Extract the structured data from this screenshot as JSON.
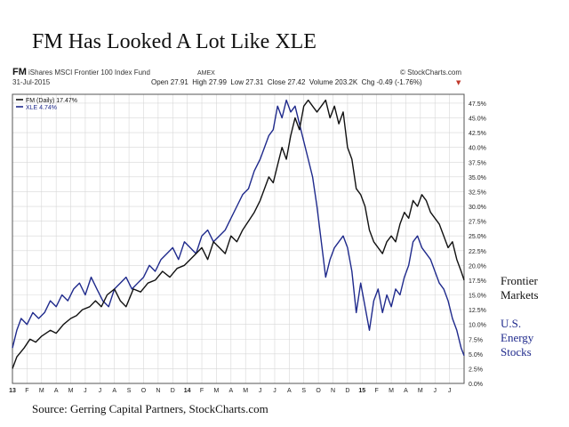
{
  "slide": {
    "title": "FM Has Looked A Lot Like XLE",
    "source": "Source: Gerring Capital Partners, StockCharts.com",
    "annotation_fm": [
      "Frontier",
      "Markets"
    ],
    "annotation_xle": [
      "U.S.",
      "Energy",
      "Stocks"
    ]
  },
  "chart_header": {
    "symbol": "FM",
    "name": "iShares MSCI Frontier 100 Index Fund",
    "exchange": "AMEX",
    "credit": "© StockCharts.com",
    "date": "31-Jul-2015",
    "quote": "Open 27.91  High 27.99  Low 27.31  Close 27.42  Volume 203.2K  Chg -0.49 (-1.76%)",
    "change_marker": "▼"
  },
  "colors": {
    "fm": "#111111",
    "xle": "#1f2a8c",
    "grid": "#d7d7d7",
    "down": "#c0392b"
  },
  "chart_data": {
    "type": "line",
    "title": "FM Has Looked A Lot Like XLE",
    "ylim": [
      0,
      49
    ],
    "grid": true,
    "legend_position": "top-left",
    "y_ticks": [
      "0.0%",
      "2.5%",
      "5.0%",
      "7.5%",
      "10.0%",
      "12.5%",
      "15.0%",
      "17.5%",
      "20.0%",
      "22.5%",
      "25.0%",
      "27.5%",
      "30.0%",
      "32.5%",
      "35.0%",
      "37.5%",
      "40.0%",
      "42.5%",
      "45.0%",
      "47.5%"
    ],
    "x_ticks": [
      "13",
      "F",
      "M",
      "A",
      "M",
      "J",
      "J",
      "A",
      "S",
      "O",
      "N",
      "D",
      "14",
      "F",
      "M",
      "A",
      "M",
      "J",
      "J",
      "A",
      "S",
      "O",
      "N",
      "D",
      "15",
      "F",
      "M",
      "A",
      "M",
      "J",
      "J"
    ],
    "series": [
      {
        "name": "FM (Daily) 17.47%",
        "x": [
          0,
          0.3,
          0.8,
          1.2,
          1.6,
          2.0,
          2.6,
          3.0,
          3.5,
          4.0,
          4.4,
          4.8,
          5.3,
          5.7,
          6.1,
          6.5,
          7.0,
          7.4,
          7.8,
          8.3,
          8.8,
          9.3,
          9.8,
          10.3,
          10.8,
          11.3,
          11.8,
          12.2,
          12.6,
          13.0,
          13.4,
          13.8,
          14.2,
          14.6,
          15.0,
          15.4,
          15.8,
          16.2,
          16.6,
          17.0,
          17.3,
          17.6,
          17.9,
          18.2,
          18.5,
          18.8,
          19.1,
          19.4,
          19.7,
          20.0,
          20.3,
          20.6,
          20.9,
          21.2,
          21.5,
          21.8,
          22.1,
          22.4,
          22.7,
          23.0,
          23.3,
          23.6,
          23.9,
          24.2,
          24.5,
          24.8,
          25.1,
          25.4,
          25.7,
          26.0,
          26.3,
          26.6,
          26.9,
          27.2,
          27.5,
          27.8,
          28.1,
          28.4,
          28.7,
          29.0,
          29.3,
          29.6,
          29.9,
          30.2,
          30.5,
          30.8,
          31.0
        ],
        "values": [
          2.5,
          4.5,
          6,
          7.5,
          7,
          8,
          9,
          8.5,
          10,
          11,
          11.5,
          12.5,
          13,
          14,
          13,
          15,
          16,
          14,
          13,
          16,
          15.5,
          17,
          17.5,
          19,
          18,
          19.5,
          20,
          21,
          22,
          23,
          21,
          24,
          23,
          22,
          25,
          24,
          26,
          27.5,
          29,
          31,
          33,
          35,
          34,
          37,
          40,
          38,
          42,
          45,
          43,
          47,
          48,
          47,
          46,
          47,
          48,
          45,
          47,
          44,
          46,
          40,
          38,
          33,
          32,
          30,
          26,
          24,
          23,
          22,
          24,
          25,
          24,
          27,
          29,
          28,
          31,
          30,
          32,
          31,
          29,
          28,
          27,
          25,
          23,
          24,
          21,
          19,
          17.5
        ]
      },
      {
        "name": "XLE 4.74%",
        "x": [
          0,
          0.3,
          0.6,
          1.0,
          1.4,
          1.8,
          2.2,
          2.6,
          3.0,
          3.4,
          3.8,
          4.2,
          4.6,
          5.0,
          5.4,
          5.8,
          6.2,
          6.6,
          7.0,
          7.4,
          7.8,
          8.2,
          8.6,
          9.0,
          9.4,
          9.8,
          10.2,
          10.6,
          11.0,
          11.4,
          11.8,
          12.2,
          12.6,
          13.0,
          13.4,
          13.8,
          14.2,
          14.6,
          15.0,
          15.4,
          15.8,
          16.2,
          16.6,
          17.0,
          17.3,
          17.6,
          17.9,
          18.2,
          18.5,
          18.8,
          19.1,
          19.4,
          19.7,
          20.0,
          20.3,
          20.6,
          20.9,
          21.2,
          21.5,
          21.8,
          22.1,
          22.4,
          22.7,
          23.0,
          23.3,
          23.6,
          23.9,
          24.2,
          24.5,
          24.8,
          25.1,
          25.4,
          25.7,
          26.0,
          26.3,
          26.6,
          26.9,
          27.2,
          27.5,
          27.8,
          28.1,
          28.4,
          28.7,
          29.0,
          29.3,
          29.6,
          29.9,
          30.2,
          30.5,
          30.8,
          31.0
        ],
        "values": [
          6,
          9,
          11,
          10,
          12,
          11,
          12,
          14,
          13,
          15,
          14,
          16,
          17,
          15,
          18,
          16,
          14,
          13,
          16,
          17,
          18,
          16,
          17,
          18,
          20,
          19,
          21,
          22,
          23,
          21,
          24,
          23,
          22,
          25,
          26,
          24,
          25,
          26,
          28,
          30,
          32,
          33,
          36,
          38,
          40,
          42,
          43,
          47,
          45,
          48,
          46,
          47,
          44,
          41,
          38,
          35,
          30,
          24,
          18,
          21,
          23,
          24,
          25,
          23,
          19,
          12,
          17,
          13,
          9,
          14,
          16,
          12,
          15,
          13,
          16,
          15,
          18,
          20,
          24,
          25,
          23,
          22,
          21,
          19,
          17,
          16,
          14,
          11,
          9,
          6,
          4.7
        ]
      }
    ]
  }
}
